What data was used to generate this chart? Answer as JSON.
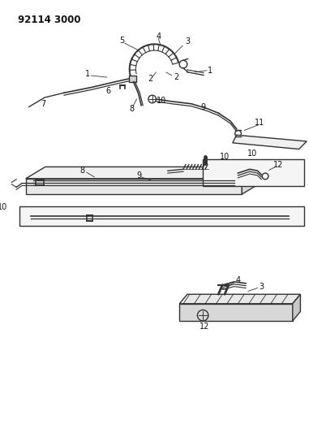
{
  "title": "92114 3000",
  "bg_color": "#ffffff",
  "line_color": "#333333",
  "text_color": "#111111",
  "title_fontsize": 8.5,
  "label_fontsize": 7,
  "fig_width": 3.81,
  "fig_height": 5.33,
  "dpi": 100
}
